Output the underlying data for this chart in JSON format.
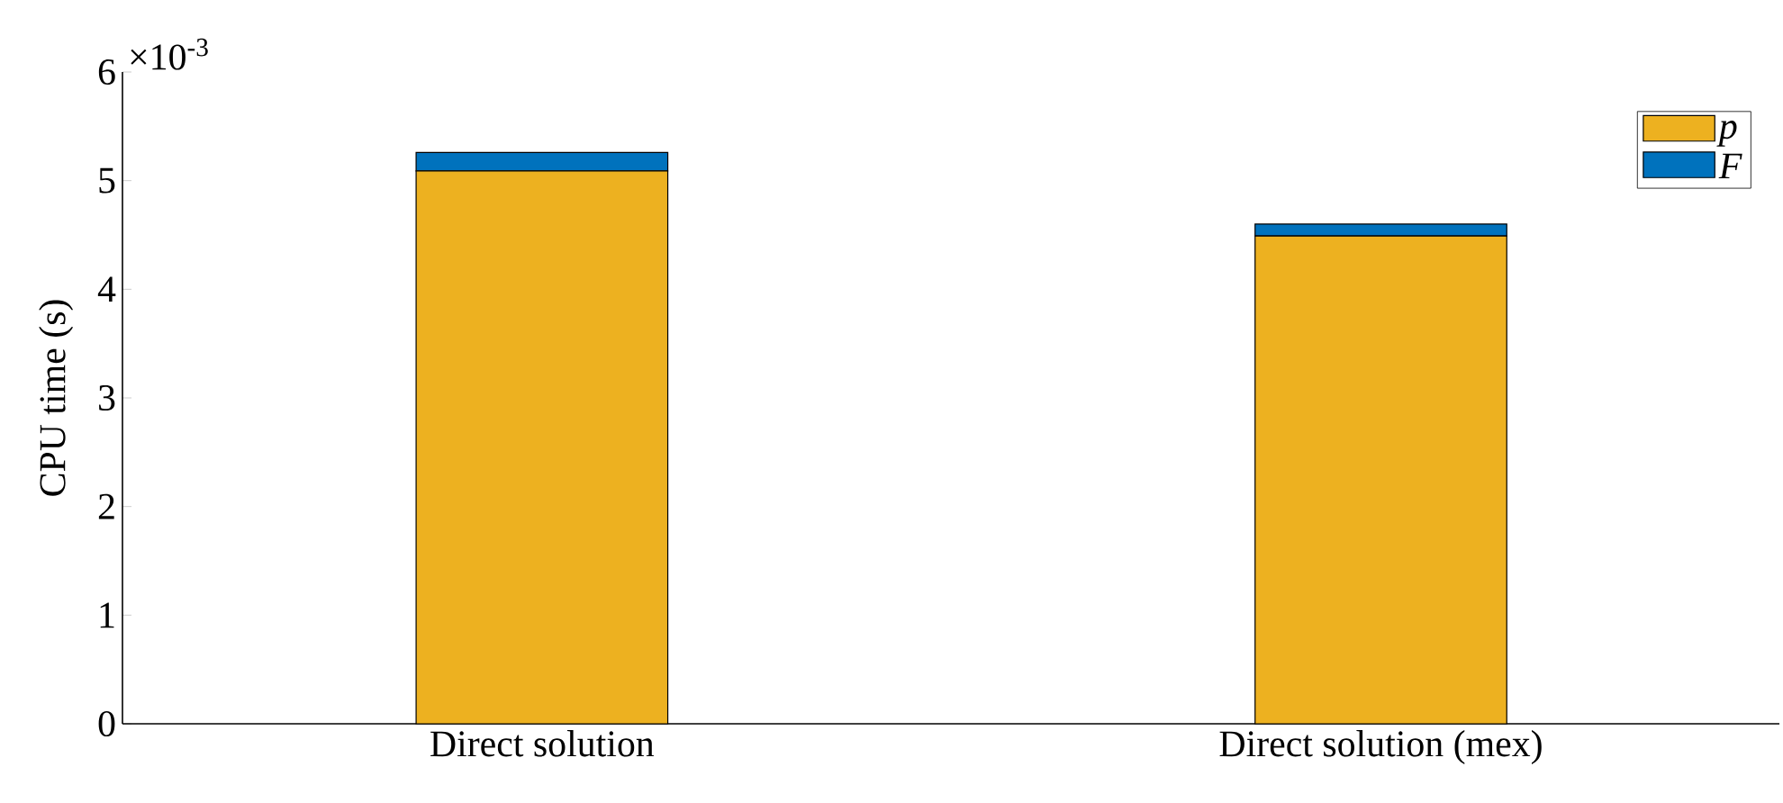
{
  "chart_data": {
    "type": "bar",
    "stacked": true,
    "ylabel": "CPU time (s)",
    "categories": [
      "Direct solution",
      "Direct solution (mex)"
    ],
    "series": [
      {
        "name": "p",
        "color": "#edb120",
        "values": [
          5.09,
          4.49
        ]
      },
      {
        "name": "F",
        "color": "#0072bd",
        "values": [
          0.17,
          0.11
        ]
      }
    ],
    "ylim": [
      0,
      6
    ],
    "yticks": [
      0,
      1,
      2,
      3,
      4,
      5,
      6
    ],
    "legend": "top right",
    "grid": false,
    "annotations": [
      "×10$^{-3}$"
    ]
  }
}
